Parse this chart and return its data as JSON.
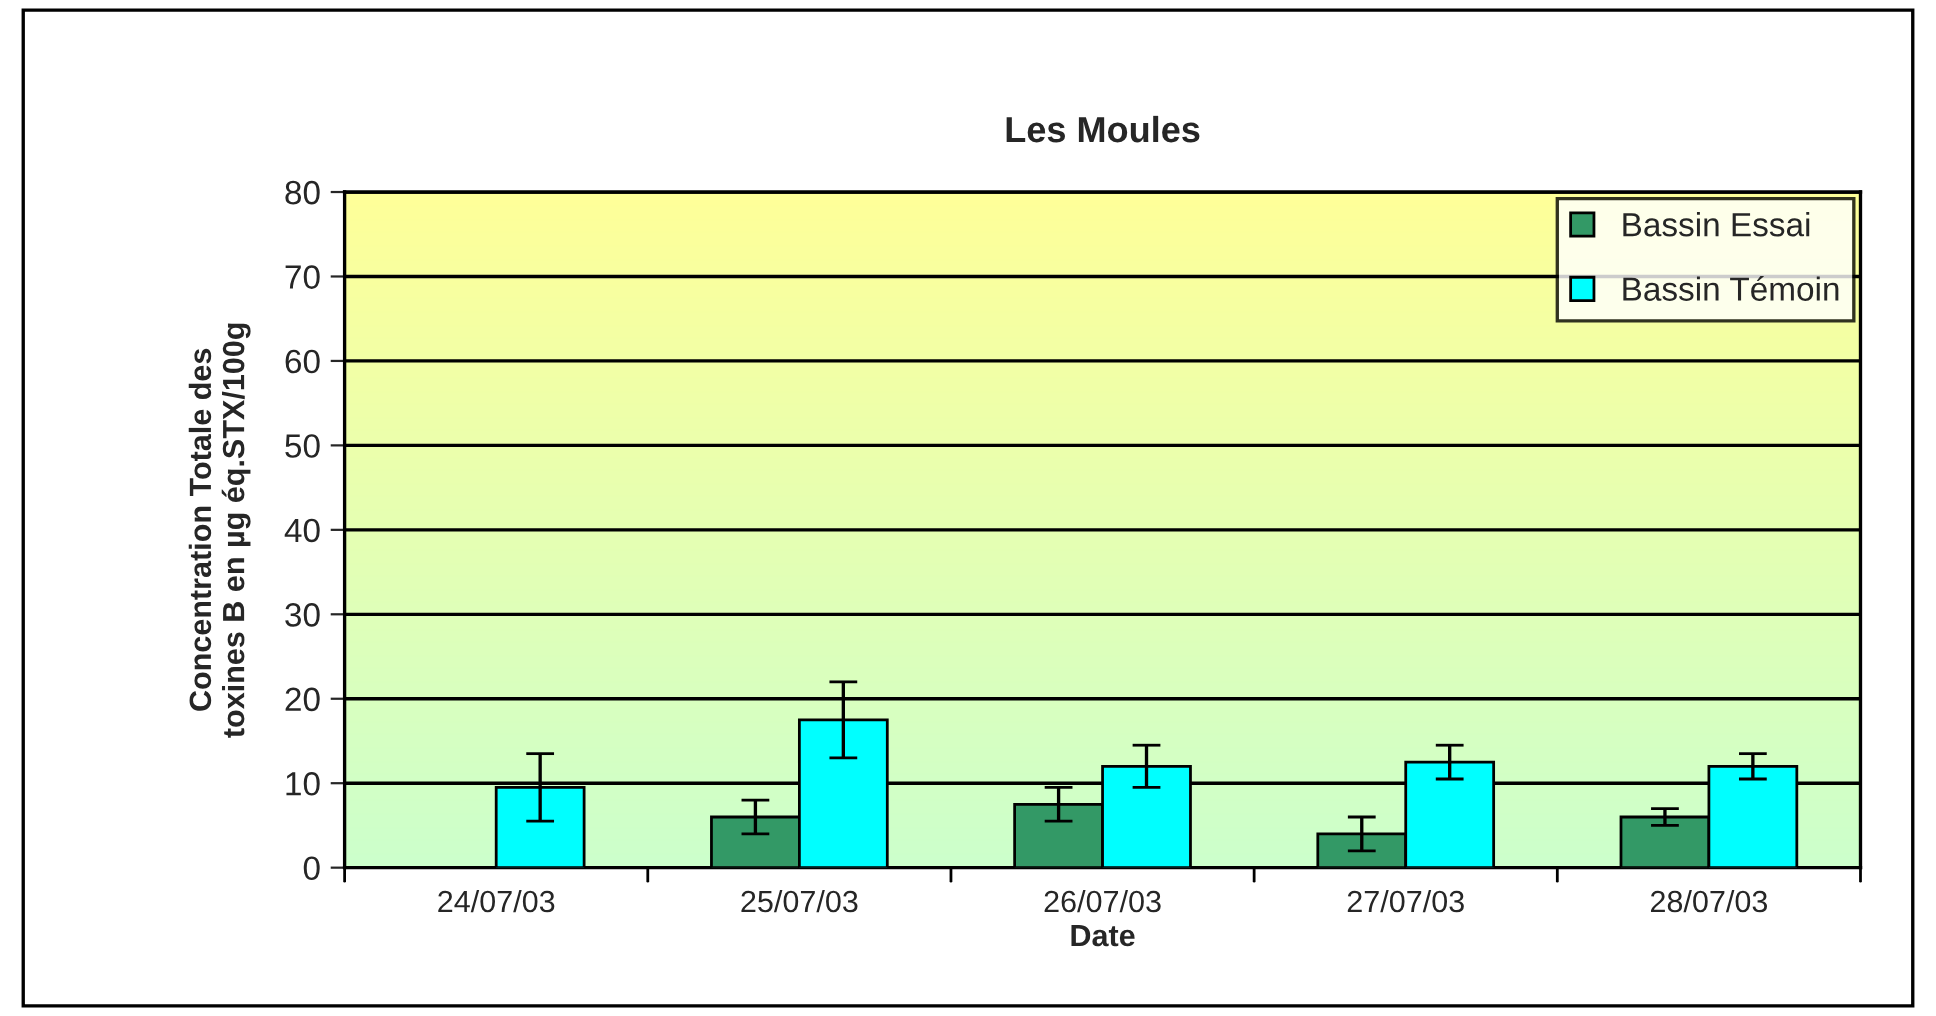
{
  "chart_data": {
    "type": "bar",
    "title": "Les Moules",
    "xlabel": "Date",
    "ylabel": "Concentration Totale des\ntoxines B en µg éq.STX/100g",
    "categories": [
      "24/07/03",
      "25/07/03",
      "26/07/03",
      "27/07/03",
      "28/07/03"
    ],
    "series": [
      {
        "name": "Bassin Essai",
        "color": "#339966",
        "values": [
          null,
          6.0,
          7.5,
          4.0,
          6.0
        ],
        "errors": [
          null,
          2,
          2,
          2,
          1
        ]
      },
      {
        "name": "Bassin Témoin",
        "color": "#00ffff",
        "values": [
          9.5,
          17.5,
          12,
          12.5,
          12
        ],
        "errors": [
          4,
          4.5,
          2.5,
          2,
          1.5
        ]
      }
    ],
    "ylim": [
      0,
      80
    ],
    "yticks": [
      0,
      10,
      20,
      30,
      40,
      50,
      60,
      70,
      80
    ],
    "grid": "y",
    "legend": "top right"
  }
}
